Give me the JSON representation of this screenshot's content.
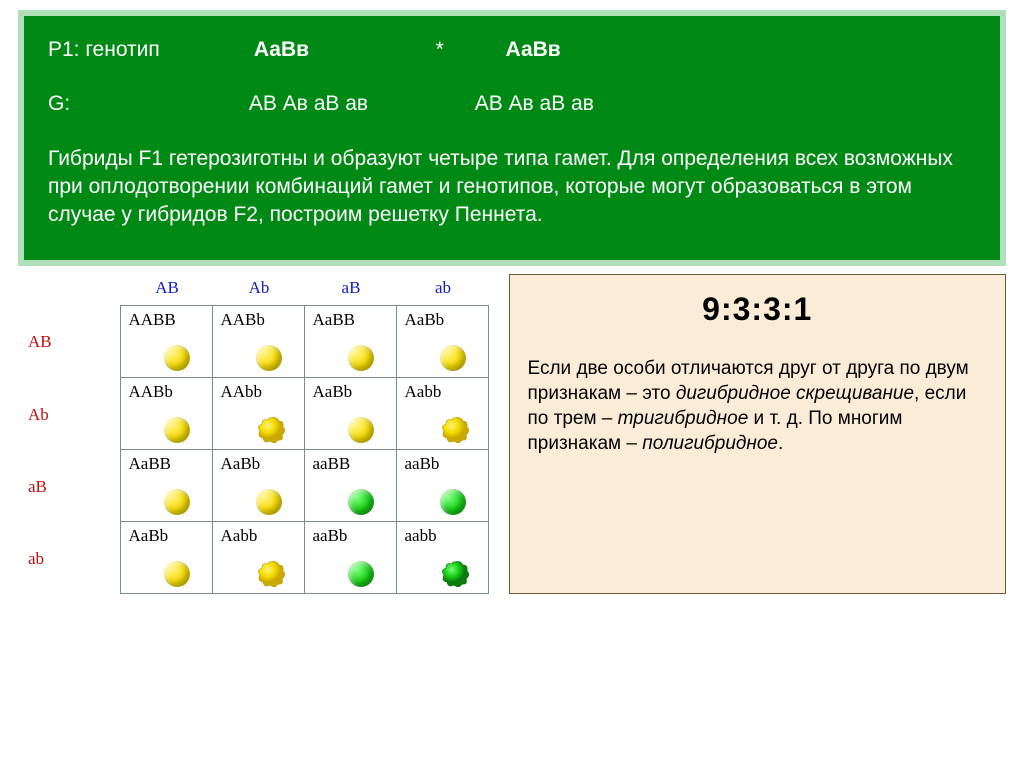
{
  "top": {
    "p1_label": "P1:  генотип",
    "genotype1": "АаВв",
    "star": "*",
    "genotype2": "АаВв",
    "g_label": "G:",
    "gametes1": "АВ  Ав  аВ  ав",
    "gametes2": "АВ  Ав  аВ  ав",
    "description": "Гибриды F1 гетерозиготны и образуют четыре типа гамет. Для определения всех возможных при оплодотворении комбинаций гамет и генотипов, которые могут образоваться в этом случае у гибридов F2, построим решетку Пеннета."
  },
  "colors": {
    "panel_bg": "#008a15",
    "panel_border": "#b0e0ba",
    "col_header": "#1020c0",
    "row_header": "#c01010",
    "yellow_pea": "#f5dc00",
    "green_pea": "#18d018",
    "right_panel_bg": "#fbecd8"
  },
  "punnett": {
    "col_headers": [
      "AB",
      "Ab",
      "aB",
      "ab"
    ],
    "row_headers": [
      "AB",
      "Ab",
      "aB",
      "ab"
    ],
    "cells": [
      [
        {
          "g": "AABB",
          "c": "yellow",
          "t": "smooth"
        },
        {
          "g": "AABb",
          "c": "yellow",
          "t": "smooth"
        },
        {
          "g": "AaBB",
          "c": "yellow",
          "t": "smooth"
        },
        {
          "g": "AaBb",
          "c": "yellow",
          "t": "smooth"
        }
      ],
      [
        {
          "g": "AABb",
          "c": "yellow",
          "t": "smooth"
        },
        {
          "g": "AAbb",
          "c": "yellow",
          "t": "wrinkled"
        },
        {
          "g": "AaBb",
          "c": "yellow",
          "t": "smooth"
        },
        {
          "g": "Aabb",
          "c": "yellow",
          "t": "wrinkled"
        }
      ],
      [
        {
          "g": "AaBB",
          "c": "yellow",
          "t": "smooth"
        },
        {
          "g": "AaBb",
          "c": "yellow",
          "t": "smooth"
        },
        {
          "g": "aaBB",
          "c": "green",
          "t": "smooth"
        },
        {
          "g": "aaBb",
          "c": "green",
          "t": "smooth"
        }
      ],
      [
        {
          "g": "AaBb",
          "c": "yellow",
          "t": "smooth"
        },
        {
          "g": "Aabb",
          "c": "yellow",
          "t": "wrinkled"
        },
        {
          "g": "aaBb",
          "c": "green",
          "t": "smooth"
        },
        {
          "g": "aabb",
          "c": "green",
          "t": "wrinkled"
        }
      ]
    ]
  },
  "right": {
    "ratio": "9:3:3:1",
    "text_pre1": "Если две особи отличаются друг от друга по двум признакам – это ",
    "it1": "дигибридное скрещивание",
    "text_mid1": ", если по трем – ",
    "it2": "тригибридное",
    "text_mid2": " и т. д. По многим признакам – ",
    "it3": "полигибридное",
    "text_end": "."
  }
}
